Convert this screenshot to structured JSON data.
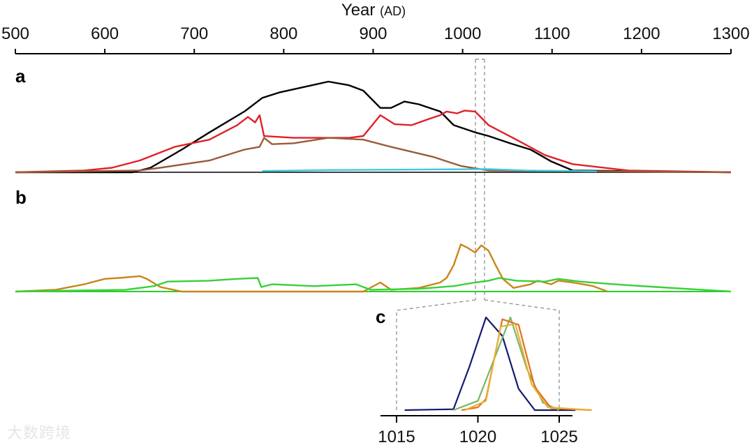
{
  "chart_data": [
    {
      "panel": "a",
      "type": "line",
      "xlabel": "Year",
      "xlabel_unit": "(AD)",
      "xlim": [
        500,
        1300
      ],
      "xticks": [
        "500",
        "600",
        "700",
        "800",
        "900",
        "1000",
        "1100",
        "1200",
        "1300"
      ],
      "ylabel": "",
      "series": [
        {
          "name": "black",
          "color": "#000000",
          "points": [
            [
              500,
              0
            ],
            [
              631,
              0
            ],
            [
              651,
              0.05
            ],
            [
              686,
              0.25
            ],
            [
              717,
              0.44
            ],
            [
              756,
              0.67
            ],
            [
              776,
              0.82
            ],
            [
              795,
              0.88
            ],
            [
              818,
              0.93
            ],
            [
              850,
              1.0
            ],
            [
              873,
              0.96
            ],
            [
              889,
              0.9
            ],
            [
              908,
              0.71
            ],
            [
              920,
              0.71
            ],
            [
              935,
              0.78
            ],
            [
              951,
              0.75
            ],
            [
              975,
              0.67
            ],
            [
              990,
              0.52
            ],
            [
              1014,
              0.44
            ],
            [
              1029,
              0.4
            ],
            [
              1053,
              0.32
            ],
            [
              1076,
              0.25
            ],
            [
              1099,
              0.12
            ],
            [
              1123,
              0.02
            ],
            [
              1300,
              0
            ]
          ]
        },
        {
          "name": "red",
          "color": "#e0202a",
          "points": [
            [
              500,
              0
            ],
            [
              577,
              0.02
            ],
            [
              608,
              0.05
            ],
            [
              639,
              0.13
            ],
            [
              678,
              0.28
            ],
            [
              717,
              0.36
            ],
            [
              748,
              0.52
            ],
            [
              760,
              0.61
            ],
            [
              768,
              0.55
            ],
            [
              773,
              0.63
            ],
            [
              778,
              0.4
            ],
            [
              811,
              0.38
            ],
            [
              873,
              0.38
            ],
            [
              889,
              0.4
            ],
            [
              908,
              0.63
            ],
            [
              924,
              0.53
            ],
            [
              943,
              0.52
            ],
            [
              963,
              0.59
            ],
            [
              975,
              0.63
            ],
            [
              982,
              0.67
            ],
            [
              994,
              0.65
            ],
            [
              1002,
              0.68
            ],
            [
              1014,
              0.67
            ],
            [
              1029,
              0.52
            ],
            [
              1060,
              0.36
            ],
            [
              1092,
              0.19
            ],
            [
              1123,
              0.09
            ],
            [
              1185,
              0.02
            ],
            [
              1300,
              0
            ]
          ]
        },
        {
          "name": "brown",
          "color": "#9a5a3a",
          "points": [
            [
              500,
              0
            ],
            [
              639,
              0.02
            ],
            [
              662,
              0.05
            ],
            [
              717,
              0.13
            ],
            [
              756,
              0.25
            ],
            [
              773,
              0.28
            ],
            [
              778,
              0.38
            ],
            [
              787,
              0.31
            ],
            [
              811,
              0.32
            ],
            [
              850,
              0.38
            ],
            [
              889,
              0.36
            ],
            [
              920,
              0.28
            ],
            [
              967,
              0.17
            ],
            [
              998,
              0.07
            ],
            [
              1029,
              0.02
            ],
            [
              1300,
              0
            ]
          ]
        },
        {
          "name": "cyan",
          "color": "#3cc8e0",
          "points": [
            [
              776,
              0.015
            ],
            [
              850,
              0.025
            ],
            [
              950,
              0.03
            ],
            [
              1029,
              0.035
            ],
            [
              1070,
              0.02
            ],
            [
              1150,
              0.01
            ]
          ]
        }
      ]
    },
    {
      "panel": "b",
      "type": "line",
      "xlim": [
        500,
        1300
      ],
      "series": [
        {
          "name": "orange",
          "color": "#c8861a",
          "points": [
            [
              500,
              0
            ],
            [
              545,
              0.02
            ],
            [
              577,
              0.08
            ],
            [
              600,
              0.14
            ],
            [
              616,
              0.15
            ],
            [
              639,
              0.17
            ],
            [
              647,
              0.14
            ],
            [
              662,
              0.05
            ],
            [
              686,
              0
            ],
            [
              889,
              0
            ],
            [
              908,
              0.1
            ],
            [
              920,
              0.02
            ],
            [
              951,
              0.04
            ],
            [
              975,
              0.1
            ],
            [
              982,
              0.15
            ],
            [
              990,
              0.29
            ],
            [
              998,
              0.52
            ],
            [
              1006,
              0.48
            ],
            [
              1014,
              0.43
            ],
            [
              1021,
              0.51
            ],
            [
              1029,
              0.45
            ],
            [
              1037,
              0.29
            ],
            [
              1045,
              0.14
            ],
            [
              1057,
              0.04
            ],
            [
              1076,
              0.08
            ],
            [
              1084,
              0.12
            ],
            [
              1099,
              0.08
            ],
            [
              1107,
              0.12
            ],
            [
              1123,
              0.1
            ],
            [
              1146,
              0.06
            ],
            [
              1162,
              0
            ]
          ]
        },
        {
          "name": "green",
          "color": "#3ad03a",
          "points": [
            [
              500,
              0
            ],
            [
              623,
              0.02
            ],
            [
              655,
              0.06
            ],
            [
              670,
              0.11
            ],
            [
              717,
              0.12
            ],
            [
              748,
              0.14
            ],
            [
              771,
              0.15
            ],
            [
              775,
              0.05
            ],
            [
              787,
              0.08
            ],
            [
              834,
              0.06
            ],
            [
              881,
              0.08
            ],
            [
              897,
              0.02
            ],
            [
              951,
              0.03
            ],
            [
              990,
              0.06
            ],
            [
              1014,
              0.1
            ],
            [
              1029,
              0.12
            ],
            [
              1041,
              0.15
            ],
            [
              1060,
              0.12
            ],
            [
              1092,
              0.11
            ],
            [
              1107,
              0.14
            ],
            [
              1131,
              0.11
            ],
            [
              1170,
              0.08
            ],
            [
              1217,
              0.05
            ],
            [
              1300,
              0
            ]
          ]
        }
      ]
    },
    {
      "panel": "c",
      "type": "line",
      "xlim": [
        1015,
        1025
      ],
      "xticks": [
        "1015",
        "1020",
        "1025"
      ],
      "series": [
        {
          "name": "navy",
          "color": "#141a6e",
          "points": [
            [
              1015.5,
              0
            ],
            [
              1018.5,
              0.01
            ],
            [
              1019.5,
              0.48
            ],
            [
              1020.5,
              1.0
            ],
            [
              1021.5,
              0.8
            ],
            [
              1022.5,
              0.23
            ],
            [
              1023.5,
              0
            ],
            [
              1026,
              0
            ]
          ]
        },
        {
          "name": "green",
          "color": "#7ab56a",
          "points": [
            [
              1018.5,
              0
            ],
            [
              1020,
              0.1
            ],
            [
              1022,
              1.0
            ],
            [
              1023,
              0.45
            ],
            [
              1024,
              0.08
            ],
            [
              1025,
              0
            ]
          ]
        },
        {
          "name": "orange",
          "color": "#e07020",
          "points": [
            [
              1019,
              0
            ],
            [
              1020,
              0.03
            ],
            [
              1020.5,
              0.12
            ],
            [
              1021.5,
              0.98
            ],
            [
              1022.5,
              0.92
            ],
            [
              1023.5,
              0.25
            ],
            [
              1024.5,
              0.02
            ],
            [
              1027,
              0
            ]
          ]
        },
        {
          "name": "yellow",
          "color": "#e8b030",
          "points": [
            [
              1019.2,
              0
            ],
            [
              1020.5,
              0.1
            ],
            [
              1021.4,
              0.9
            ],
            [
              1022.3,
              0.93
            ],
            [
              1023.3,
              0.28
            ],
            [
              1024.3,
              0.03
            ],
            [
              1027,
              0
            ]
          ]
        }
      ]
    }
  ],
  "watermark": "大数跨境"
}
